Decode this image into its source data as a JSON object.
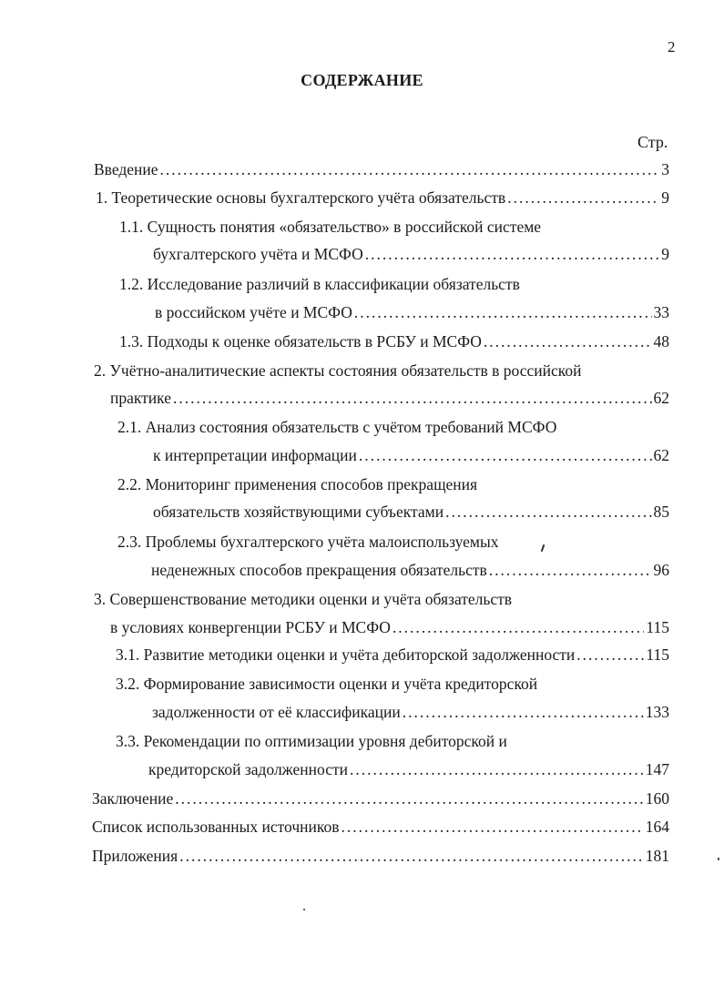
{
  "page_number": "2",
  "title": "СОДЕРЖАНИЕ",
  "page_column_label": "Стр.",
  "entries": [
    {
      "text": "Введение",
      "page": "3"
    },
    {
      "text": "1. Теоретические основы бухгалтерского учёта обязательств",
      "page": "9"
    },
    {
      "text": "1.1. Сущность понятия «обязательство» в российской системе",
      "cont": "бухгалтерского учёта и МСФО",
      "page": "9"
    },
    {
      "text": "1.2. Исследование различий в классификации обязательств",
      "cont": "в российском учёте и МСФО",
      "page": "33"
    },
    {
      "text": "1.3. Подходы к оценке обязательств в РСБУ и МСФО",
      "page": "48"
    },
    {
      "text": "2. Учётно-аналитические аспекты состояния обязательств в российской",
      "cont": "практике",
      "page": "62"
    },
    {
      "text": "2.1. Анализ состояния обязательств с учётом требований МСФО",
      "cont": "к интерпретации информации",
      "page": "62"
    },
    {
      "text": "2.2. Мониторинг применения способов прекращения",
      "cont": "обязательств хозяйствующими субъектами",
      "page": "85"
    },
    {
      "text": "2.3. Проблемы бухгалтерского учёта малоиспользуемых",
      "cont": "неденежных способов прекращения обязательств",
      "page": "96"
    },
    {
      "text": "3. Совершенствование методики оценки и учёта обязательств",
      "cont": "в условиях конвергенции РСБУ и МСФО",
      "page": "115"
    },
    {
      "text": "3.1. Развитие методики оценки и учёта дебиторской задолженности",
      "page": "115"
    },
    {
      "text": "3.2. Формирование зависимости оценки и учёта кредиторской",
      "cont": "задолженности от её классификации",
      "page": "133"
    },
    {
      "text": "3.3. Рекомендации по оптимизации уровня дебиторской и",
      "cont": "кредиторской задолженности",
      "page": "147"
    },
    {
      "text": "Заключение",
      "page": "160"
    },
    {
      "text": "Список использованных источников",
      "page": "164"
    },
    {
      "text": "Приложения",
      "page": "181"
    }
  ]
}
